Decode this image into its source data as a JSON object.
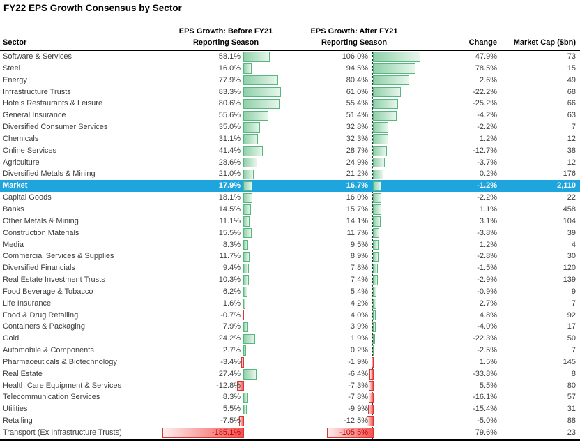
{
  "chart_data": {
    "type": "table",
    "title": "FY22 EPS Growth Consensus by Sector",
    "headers": {
      "sector": "Sector",
      "before_line1": "EPS Growth: Before FY21",
      "before_line2": "Reporting Season",
      "after_line1": "EPS Growth: After FY21",
      "after_line2": "Reporting Season",
      "change": "Change",
      "market_cap": "Market Cap ($bn)"
    },
    "highlight_row": "Market",
    "rows": [
      {
        "sector": "Software & Services",
        "before": "58.1%",
        "after": "106.0%",
        "change": "47.9%",
        "mcap": "73"
      },
      {
        "sector": "Steel",
        "before": "16.0%",
        "after": "94.5%",
        "change": "78.5%",
        "mcap": "15"
      },
      {
        "sector": "Energy",
        "before": "77.9%",
        "after": "80.4%",
        "change": "2.6%",
        "mcap": "49"
      },
      {
        "sector": "Infrastructure Trusts",
        "before": "83.3%",
        "after": "61.0%",
        "change": "-22.2%",
        "mcap": "68"
      },
      {
        "sector": "Hotels Restaurants & Leisure",
        "before": "80.6%",
        "after": "55.4%",
        "change": "-25.2%",
        "mcap": "66"
      },
      {
        "sector": "General Insurance",
        "before": "55.6%",
        "after": "51.4%",
        "change": "-4.2%",
        "mcap": "63"
      },
      {
        "sector": "Diversified Consumer Services",
        "before": "35.0%",
        "after": "32.8%",
        "change": "-2.2%",
        "mcap": "7"
      },
      {
        "sector": "Chemicals",
        "before": "31.1%",
        "after": "32.3%",
        "change": "1.2%",
        "mcap": "12"
      },
      {
        "sector": "Online Services",
        "before": "41.4%",
        "after": "28.7%",
        "change": "-12.7%",
        "mcap": "38"
      },
      {
        "sector": "Agriculture",
        "before": "28.6%",
        "after": "24.9%",
        "change": "-3.7%",
        "mcap": "12"
      },
      {
        "sector": "Diversified Metals & Mining",
        "before": "21.0%",
        "after": "21.2%",
        "change": "0.2%",
        "mcap": "176"
      },
      {
        "sector": "Market",
        "before": "17.9%",
        "after": "16.7%",
        "change": "-1.2%",
        "mcap": "2,110"
      },
      {
        "sector": "Capital Goods",
        "before": "18.1%",
        "after": "16.0%",
        "change": "-2.2%",
        "mcap": "22"
      },
      {
        "sector": "Banks",
        "before": "14.5%",
        "after": "15.7%",
        "change": "1.1%",
        "mcap": "458"
      },
      {
        "sector": "Other Metals & Mining",
        "before": "11.1%",
        "after": "14.1%",
        "change": "3.1%",
        "mcap": "104"
      },
      {
        "sector": "Construction Materials",
        "before": "15.5%",
        "after": "11.7%",
        "change": "-3.8%",
        "mcap": "39"
      },
      {
        "sector": "Media",
        "before": "8.3%",
        "after": "9.5%",
        "change": "1.2%",
        "mcap": "4"
      },
      {
        "sector": "Commercial Services & Supplies",
        "before": "11.7%",
        "after": "8.9%",
        "change": "-2.8%",
        "mcap": "30"
      },
      {
        "sector": "Diversified Financials",
        "before": "9.4%",
        "after": "7.8%",
        "change": "-1.5%",
        "mcap": "120"
      },
      {
        "sector": "Real Estate Investment Trusts",
        "before": "10.3%",
        "after": "7.4%",
        "change": "-2.9%",
        "mcap": "139"
      },
      {
        "sector": "Food Beverage & Tobacco",
        "before": "6.2%",
        "after": "5.4%",
        "change": "-0.9%",
        "mcap": "9"
      },
      {
        "sector": "Life Insurance",
        "before": "1.6%",
        "after": "4.2%",
        "change": "2.7%",
        "mcap": "7"
      },
      {
        "sector": "Food & Drug Retailing",
        "before": "-0.7%",
        "after": "4.0%",
        "change": "4.8%",
        "mcap": "92"
      },
      {
        "sector": "Containers & Packaging",
        "before": "7.9%",
        "after": "3.9%",
        "change": "-4.0%",
        "mcap": "17"
      },
      {
        "sector": "Gold",
        "before": "24.2%",
        "after": "1.9%",
        "change": "-22.3%",
        "mcap": "50"
      },
      {
        "sector": "Automobile & Components",
        "before": "2.7%",
        "after": "0.2%",
        "change": "-2.5%",
        "mcap": "7"
      },
      {
        "sector": "Pharmaceuticals & Biotechnology",
        "before": "-3.4%",
        "after": "-1.9%",
        "change": "1.5%",
        "mcap": "145"
      },
      {
        "sector": "Real Estate",
        "before": "27.4%",
        "after": "-6.4%",
        "change": "-33.8%",
        "mcap": "8"
      },
      {
        "sector": "Health Care Equipment & Services",
        "before": "-12.8%",
        "after": "-7.3%",
        "change": "5.5%",
        "mcap": "80"
      },
      {
        "sector": "Telecommunication Services",
        "before": "8.3%",
        "after": "-7.8%",
        "change": "-16.1%",
        "mcap": "57"
      },
      {
        "sector": "Utilities",
        "before": "5.5%",
        "after": "-9.9%",
        "change": "-15.4%",
        "mcap": "31"
      },
      {
        "sector": "Retailing",
        "before": "-7.5%",
        "after": "-12.5%",
        "change": "-5.0%",
        "mcap": "88"
      },
      {
        "sector": "Transport (Ex Infrastructure Trusts)",
        "before": "-185.1%",
        "after": "-105.5%",
        "change": "79.6%",
        "mcap": "23"
      }
    ],
    "layout": {
      "positive_bar_direction": "right-from-zero-axis",
      "negative_bar_direction": "left-from-zero-axis",
      "zero_axis_style": "dashed"
    }
  },
  "colors": {
    "highlight_row_bg": "#1fa5dd",
    "highlight_row_text": "#ffffff",
    "positive_bar": "#8fd0a9",
    "positive_bar_border": "#56b77f",
    "negative_bar": "#f4524f",
    "negative_bar_border": "#d93636",
    "body_text": "#3d3d3d",
    "deep_negative_text": "#c00000"
  }
}
